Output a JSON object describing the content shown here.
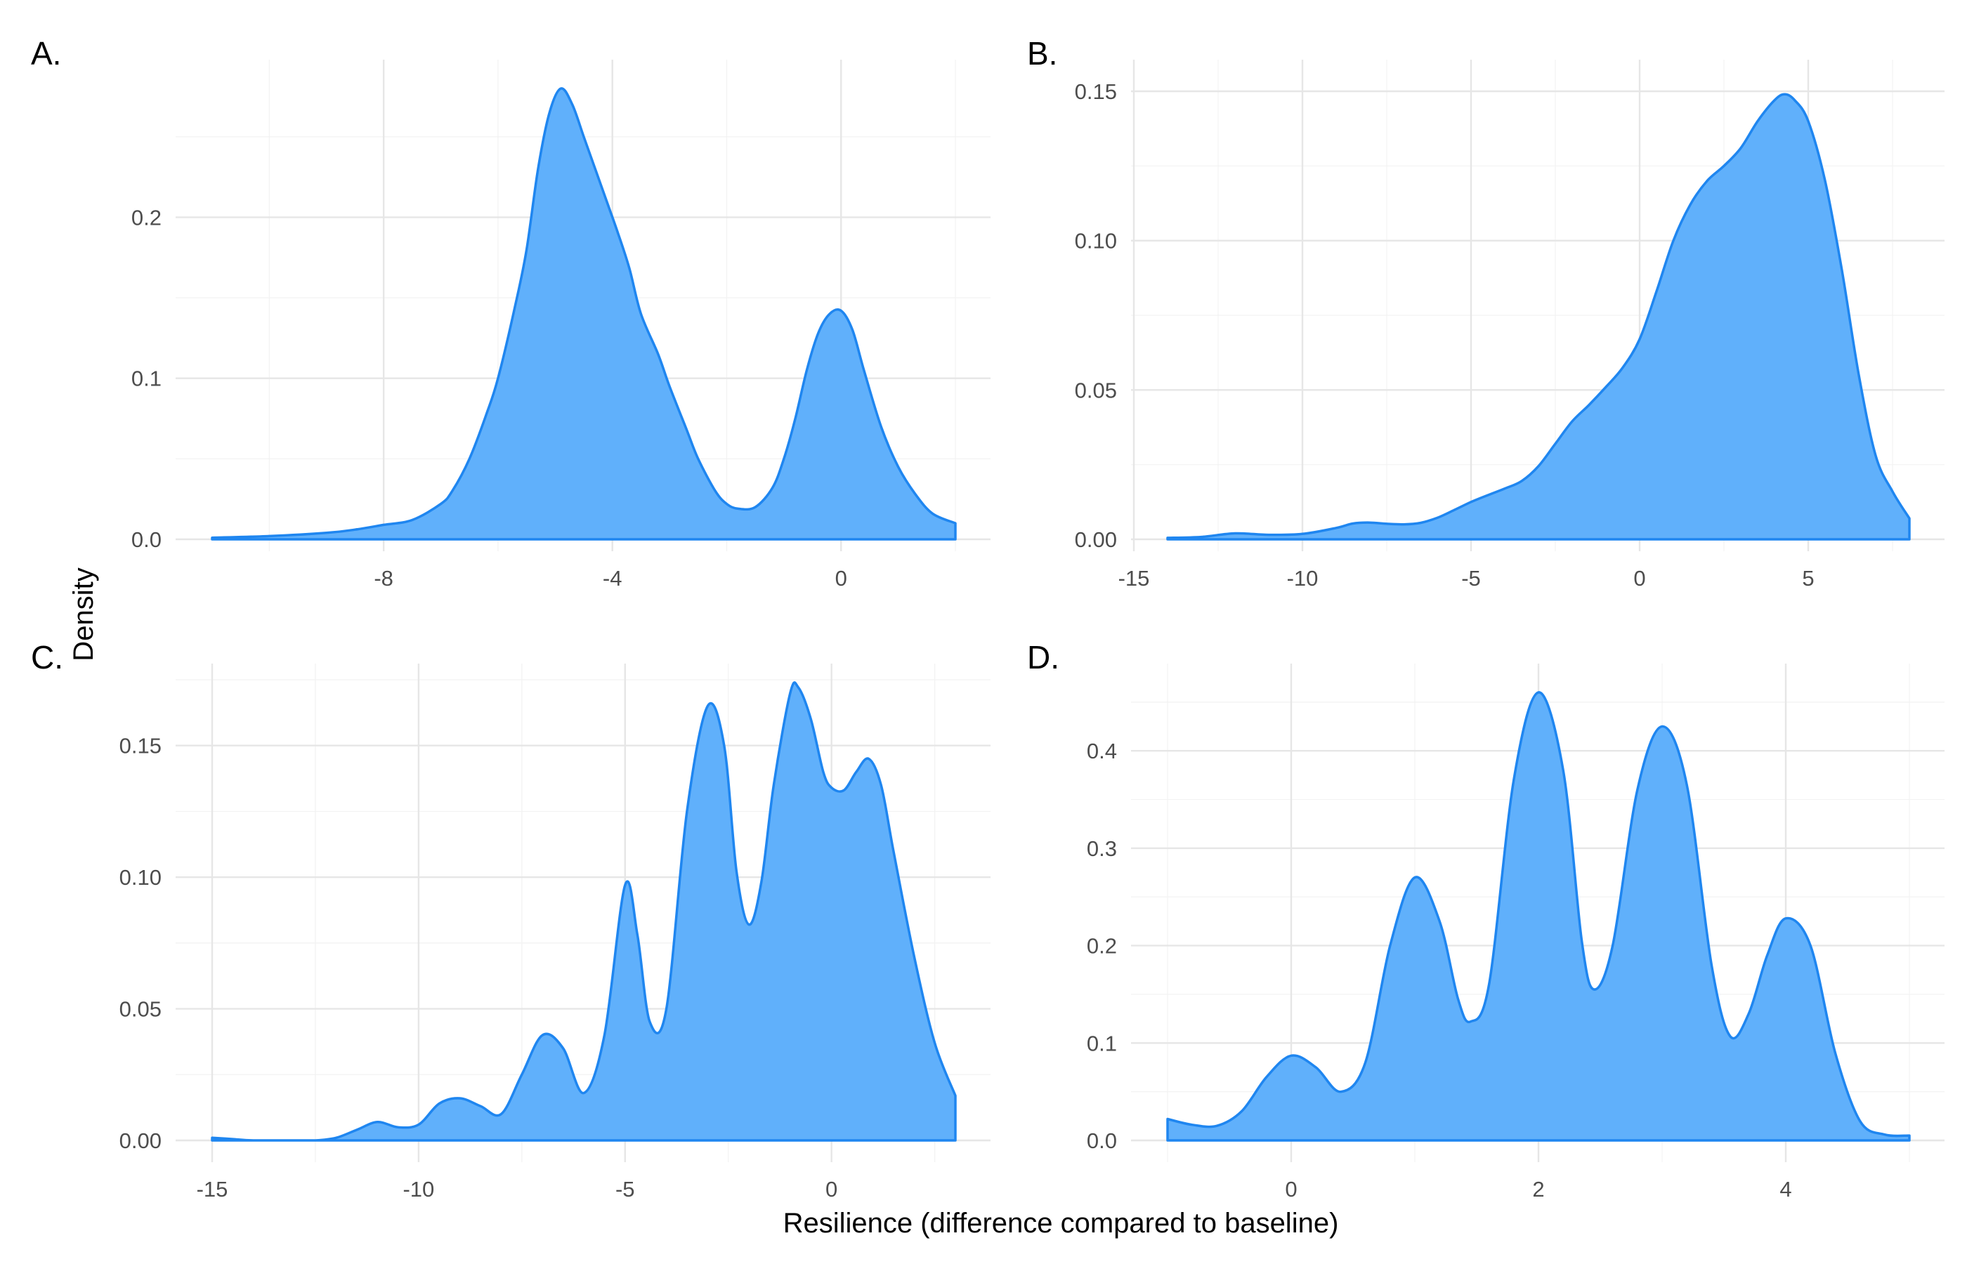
{
  "figure": {
    "xlabel": "Resilience (difference compared to baseline)",
    "ylabel": "Density"
  },
  "colors": {
    "fill": "#60b0fb",
    "line": "#1f86f0"
  },
  "chart_data": [
    {
      "type": "area",
      "panel": "A.",
      "xlim": [
        -11,
        2
      ],
      "ylim": [
        0,
        0.28
      ],
      "xticks": [
        -8,
        -4,
        0
      ],
      "xtick_labels": [
        "-8",
        "-4",
        "0"
      ],
      "yticks": [
        0.0,
        0.1,
        0.2
      ],
      "ytick_labels": [
        "0.0",
        "0.1",
        "0.2"
      ],
      "grid": true,
      "x": [
        -11,
        -10,
        -9,
        -8.5,
        -8,
        -7.5,
        -7,
        -6.8,
        -6.5,
        -6.2,
        -6,
        -5.7,
        -5.5,
        -5.3,
        -5.1,
        -4.9,
        -4.7,
        -4.5,
        -4.3,
        -4.1,
        -3.9,
        -3.7,
        -3.5,
        -3.2,
        -3,
        -2.7,
        -2.5,
        -2.2,
        -2,
        -1.8,
        -1.5,
        -1.2,
        -1,
        -0.8,
        -0.6,
        -0.4,
        -0.2,
        0,
        0.2,
        0.4,
        0.7,
        1,
        1.3,
        1.6,
        2
      ],
      "y": [
        0.001,
        0.002,
        0.004,
        0.006,
        0.009,
        0.012,
        0.022,
        0.03,
        0.05,
        0.078,
        0.1,
        0.145,
        0.18,
        0.23,
        0.265,
        0.28,
        0.27,
        0.25,
        0.23,
        0.21,
        0.19,
        0.168,
        0.14,
        0.115,
        0.095,
        0.068,
        0.05,
        0.03,
        0.022,
        0.019,
        0.02,
        0.032,
        0.05,
        0.075,
        0.105,
        0.128,
        0.14,
        0.142,
        0.13,
        0.105,
        0.07,
        0.045,
        0.028,
        0.016,
        0.01
      ]
    },
    {
      "type": "area",
      "panel": "B.",
      "xlim": [
        -14,
        8
      ],
      "ylim": [
        0,
        0.15
      ],
      "xticks": [
        -15,
        -10,
        -5,
        0,
        5
      ],
      "xtick_labels": [
        "-15",
        "-10",
        "-5",
        "0",
        "5"
      ],
      "yticks": [
        0.0,
        0.05,
        0.1,
        0.15
      ],
      "ytick_labels": [
        "0.00",
        "0.05",
        "0.10",
        "0.15"
      ],
      "grid": true,
      "x": [
        -14,
        -13,
        -12,
        -11,
        -10,
        -9,
        -8.5,
        -8,
        -7.5,
        -7,
        -6.5,
        -6,
        -5.5,
        -5,
        -4.5,
        -4,
        -3.5,
        -3,
        -2.5,
        -2,
        -1.5,
        -1,
        -0.5,
        0,
        0.5,
        1,
        1.5,
        2,
        2.5,
        3,
        3.5,
        4,
        4.3,
        4.6,
        5,
        5.5,
        6,
        6.5,
        7,
        7.5,
        8
      ],
      "y": [
        0.0005,
        0.0008,
        0.002,
        0.0015,
        0.0018,
        0.0038,
        0.0053,
        0.0056,
        0.0052,
        0.005,
        0.0055,
        0.0072,
        0.0098,
        0.0125,
        0.0148,
        0.017,
        0.0195,
        0.0245,
        0.032,
        0.0395,
        0.045,
        0.051,
        0.0575,
        0.067,
        0.083,
        0.1,
        0.112,
        0.12,
        0.125,
        0.131,
        0.14,
        0.147,
        0.149,
        0.147,
        0.14,
        0.12,
        0.09,
        0.055,
        0.028,
        0.016,
        0.007
      ]
    },
    {
      "type": "area",
      "panel": "C.",
      "xlim": [
        -15,
        3
      ],
      "ylim": [
        0,
        0.175
      ],
      "xticks": [
        -15,
        -10,
        -5,
        0
      ],
      "xtick_labels": [
        "-15",
        "-10",
        "-5",
        "0"
      ],
      "yticks": [
        0.0,
        0.05,
        0.1,
        0.15
      ],
      "ytick_labels": [
        "0.00",
        "0.05",
        "0.10",
        "0.15"
      ],
      "grid": true,
      "x": [
        -15,
        -14.5,
        -14,
        -13,
        -12.5,
        -12,
        -11.5,
        -11,
        -10.5,
        -10,
        -9.5,
        -9,
        -8.5,
        -8,
        -7.5,
        -7,
        -6.5,
        -6,
        -5.5,
        -5,
        -4.7,
        -4.4,
        -4,
        -3.5,
        -3,
        -2.6,
        -2.3,
        -2,
        -1.7,
        -1.4,
        -1,
        -0.8,
        -0.5,
        -0.2,
        0,
        0.3,
        0.6,
        0.9,
        1.2,
        1.5,
        2,
        2.5,
        3
      ],
      "y": [
        0.001,
        0.0005,
        0,
        0,
        0,
        0.001,
        0.004,
        0.007,
        0.005,
        0.006,
        0.014,
        0.016,
        0.013,
        0.01,
        0.025,
        0.04,
        0.035,
        0.018,
        0.04,
        0.097,
        0.078,
        0.045,
        0.05,
        0.125,
        0.165,
        0.15,
        0.102,
        0.082,
        0.098,
        0.135,
        0.17,
        0.172,
        0.16,
        0.14,
        0.134,
        0.133,
        0.14,
        0.145,
        0.135,
        0.11,
        0.07,
        0.037,
        0.017
      ]
    },
    {
      "type": "area",
      "panel": "D.",
      "xlim": [
        -1,
        5
      ],
      "ylim": [
        0,
        0.46
      ],
      "xticks": [
        0,
        2,
        4
      ],
      "xtick_labels": [
        "0",
        "2",
        "4"
      ],
      "yticks": [
        0.0,
        0.1,
        0.2,
        0.3,
        0.4
      ],
      "ytick_labels": [
        "0.0",
        "0.1",
        "0.2",
        "0.3",
        "0.4"
      ],
      "grid": true,
      "x": [
        -1,
        -0.8,
        -0.6,
        -0.4,
        -0.2,
        0,
        0.2,
        0.4,
        0.6,
        0.8,
        1,
        1.2,
        1.35,
        1.45,
        1.6,
        1.8,
        2,
        2.2,
        2.35,
        2.45,
        2.6,
        2.8,
        3,
        3.2,
        3.4,
        3.55,
        3.7,
        3.85,
        4,
        4.2,
        4.4,
        4.6,
        4.8,
        5
      ],
      "y": [
        0.022,
        0.016,
        0.015,
        0.03,
        0.065,
        0.087,
        0.075,
        0.05,
        0.08,
        0.2,
        0.27,
        0.225,
        0.145,
        0.122,
        0.16,
        0.37,
        0.46,
        0.38,
        0.205,
        0.155,
        0.2,
        0.36,
        0.425,
        0.365,
        0.18,
        0.107,
        0.13,
        0.19,
        0.228,
        0.2,
        0.09,
        0.02,
        0.006,
        0.005
      ]
    }
  ]
}
